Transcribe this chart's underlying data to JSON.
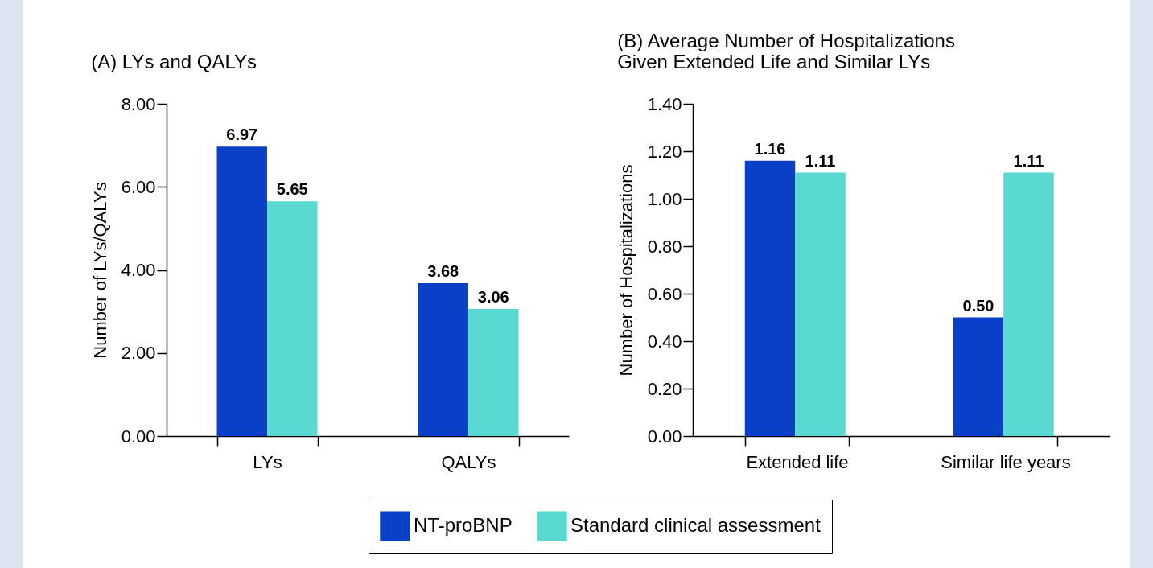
{
  "chart_data": [
    {
      "type": "bar",
      "title": "(A)  LYs and QALYs",
      "ylabel": "Number of LYs/QALYs",
      "categories": [
        "LYs",
        "QALYs"
      ],
      "series": [
        {
          "name": "NT-proBNP",
          "color": "#0a40c8",
          "values": [
            6.97,
            3.68
          ],
          "value_labels": [
            "6.97",
            "3.68"
          ]
        },
        {
          "name": "Standard clinical assessment",
          "color": "#5ad9d2",
          "values": [
            5.65,
            3.06
          ],
          "value_labels": [
            "5.65",
            "3.06"
          ]
        }
      ],
      "ylim": [
        0,
        8
      ],
      "yticks": [
        {
          "value": 0,
          "label": "0.00"
        },
        {
          "value": 2,
          "label": "2.00"
        },
        {
          "value": 4,
          "label": "4.00"
        },
        {
          "value": 6,
          "label": "6.00"
        },
        {
          "value": 8,
          "label": "8.00"
        }
      ],
      "grid": false,
      "legend": "bottom"
    },
    {
      "type": "bar",
      "title": "(B)  Average Number of Hospitalizations\nGiven Extended Life and Similar LYs",
      "ylabel": "Number of Hospitalizations",
      "categories": [
        "Extended life",
        "Similar life years"
      ],
      "series": [
        {
          "name": "NT-proBNP",
          "color": "#0a40c8",
          "values": [
            1.16,
            0.5
          ],
          "value_labels": [
            "1.16",
            "0.50"
          ]
        },
        {
          "name": "Standard clinical assessment",
          "color": "#5ad9d2",
          "values": [
            1.11,
            1.11
          ],
          "value_labels": [
            "1.11",
            "1.11"
          ]
        }
      ],
      "ylim": [
        0,
        1.4
      ],
      "yticks": [
        {
          "value": 0,
          "label": "0.00"
        },
        {
          "value": 0.2,
          "label": "0.20"
        },
        {
          "value": 0.4,
          "label": "0.40"
        },
        {
          "value": 0.6,
          "label": "0.60"
        },
        {
          "value": 0.8,
          "label": "0.80"
        },
        {
          "value": 1.0,
          "label": "1.00"
        },
        {
          "value": 1.2,
          "label": "1.20"
        },
        {
          "value": 1.4,
          "label": "1.40"
        }
      ],
      "grid": false,
      "legend": "bottom"
    }
  ]
}
